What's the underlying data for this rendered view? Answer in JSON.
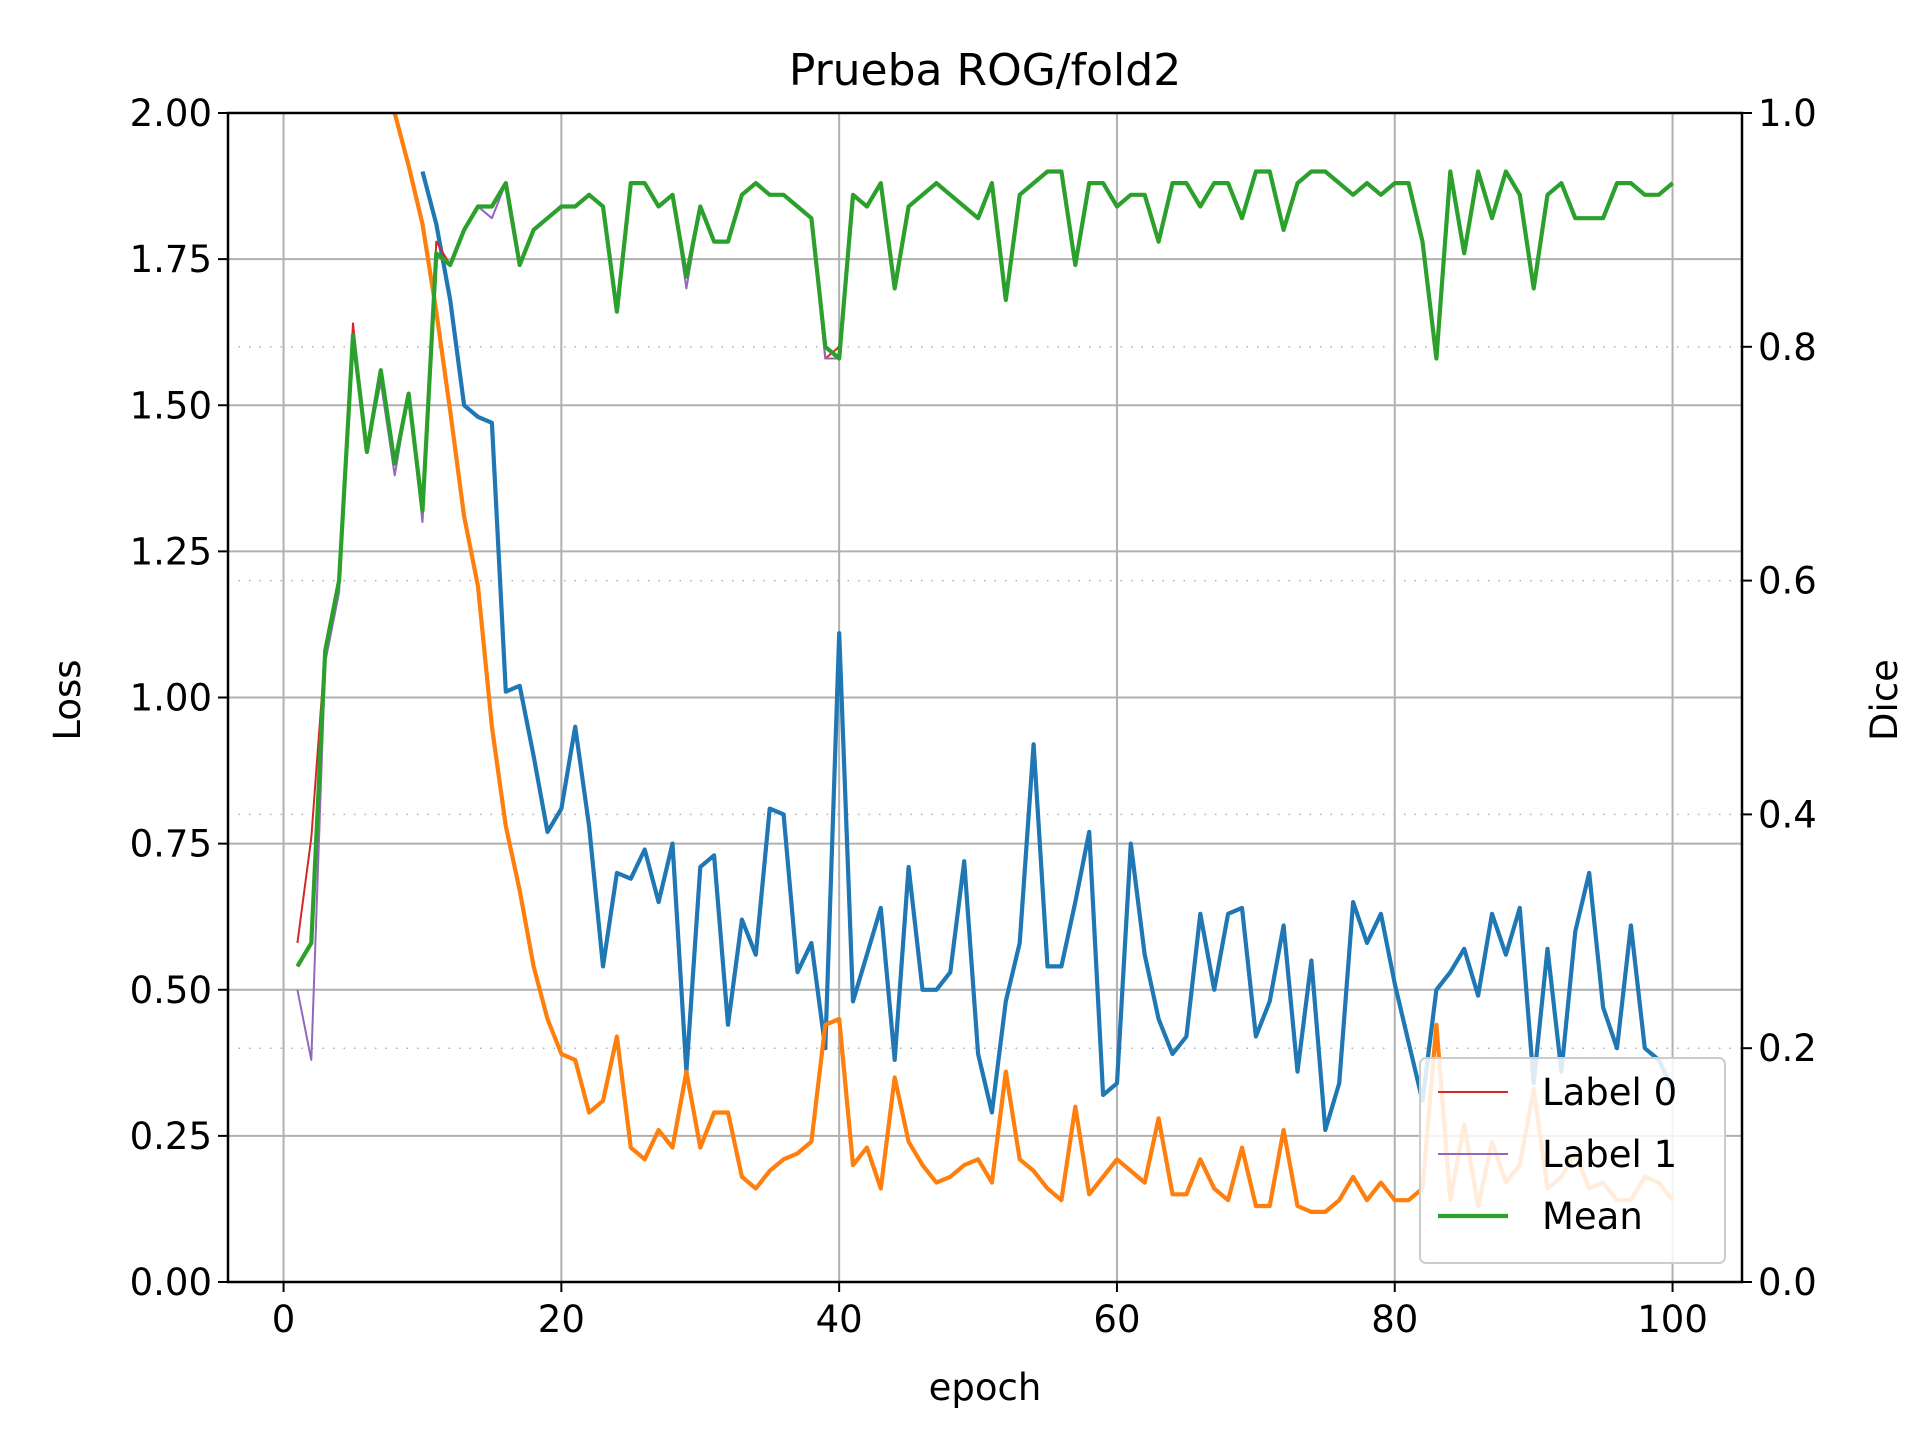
{
  "chart_data": {
    "type": "line",
    "title": "Prueba ROG/fold2",
    "xlabel": "epoch",
    "ylabel_left": "Loss",
    "ylabel_right": "Dice",
    "xlim": [
      -4,
      105
    ],
    "ylim_left": [
      0,
      2
    ],
    "ylim_right": [
      0,
      1
    ],
    "x_ticks": [
      0,
      20,
      40,
      60,
      80,
      100
    ],
    "y_left_ticks": [
      "0.00",
      "0.25",
      "0.50",
      "0.75",
      "1.00",
      "1.25",
      "1.50",
      "1.75",
      "2.00"
    ],
    "y_right_ticks": [
      "0.0",
      "0.2",
      "0.4",
      "0.6",
      "0.8",
      "1.0"
    ],
    "grid": true,
    "legend_position": "bottom-right",
    "colors": {
      "train_loss": "#1f77b4",
      "val_loss": "#ff7f0e",
      "label0": "#d62728",
      "label1": "#9467bd",
      "mean": "#2ca02c",
      "grid": "#b0b0b0"
    },
    "loss_series": [
      {
        "key": "train_loss",
        "axis": "left",
        "x": [
          10,
          11,
          12,
          13,
          14,
          15,
          16,
          17,
          18,
          19,
          20,
          21,
          22,
          23,
          24,
          25,
          26,
          27,
          28,
          29,
          30,
          31,
          32,
          33,
          34,
          35,
          36,
          37,
          38,
          39,
          40,
          41,
          42,
          43,
          44,
          45,
          46,
          47,
          48,
          49,
          50,
          51,
          52,
          53,
          54,
          55,
          56,
          57,
          58,
          59,
          60,
          61,
          62,
          63,
          64,
          65,
          66,
          67,
          68,
          69,
          70,
          71,
          72,
          73,
          74,
          75,
          76,
          77,
          78,
          79,
          80,
          81,
          82,
          83,
          84,
          85,
          86,
          87,
          88,
          89,
          90,
          91,
          92,
          93,
          94,
          95,
          96,
          97,
          98,
          99,
          100
        ],
        "values": [
          1.9,
          1.81,
          1.68,
          1.5,
          1.48,
          1.47,
          1.01,
          1.02,
          0.9,
          0.77,
          0.81,
          0.95,
          0.78,
          0.54,
          0.7,
          0.69,
          0.74,
          0.65,
          0.75,
          0.36,
          0.71,
          0.73,
          0.44,
          0.62,
          0.56,
          0.81,
          0.8,
          0.53,
          0.58,
          0.4,
          1.11,
          0.48,
          0.56,
          0.64,
          0.38,
          0.71,
          0.5,
          0.5,
          0.53,
          0.72,
          0.39,
          0.29,
          0.48,
          0.58,
          0.92,
          0.54,
          0.54,
          0.65,
          0.77,
          0.32,
          0.34,
          0.75,
          0.56,
          0.45,
          0.39,
          0.42,
          0.63,
          0.5,
          0.63,
          0.64,
          0.42,
          0.48,
          0.61,
          0.36,
          0.55,
          0.26,
          0.34,
          0.65,
          0.58,
          0.63,
          0.51,
          0.41,
          0.31,
          0.5,
          0.53,
          0.57,
          0.49,
          0.63,
          0.56,
          0.64,
          0.34,
          0.57,
          0.36,
          0.6,
          0.7,
          0.47,
          0.4,
          0.61,
          0.4,
          0.38,
          0.33
        ]
      },
      {
        "key": "val_loss",
        "axis": "left",
        "x": [
          8,
          9,
          10,
          11,
          12,
          13,
          14,
          15,
          16,
          17,
          18,
          19,
          20,
          21,
          22,
          23,
          24,
          25,
          26,
          27,
          28,
          29,
          30,
          31,
          32,
          33,
          34,
          35,
          36,
          37,
          38,
          39,
          40,
          41,
          42,
          43,
          44,
          45,
          46,
          47,
          48,
          49,
          50,
          51,
          52,
          53,
          54,
          55,
          56,
          57,
          58,
          59,
          60,
          61,
          62,
          63,
          64,
          65,
          66,
          67,
          68,
          69,
          70,
          71,
          72,
          73,
          74,
          75,
          76,
          77,
          78,
          79,
          80,
          81,
          82,
          83,
          84,
          85,
          86,
          87,
          88,
          89,
          90,
          91,
          92,
          93,
          94,
          95,
          96,
          97,
          98,
          99,
          100
        ],
        "values": [
          2.0,
          1.91,
          1.81,
          1.66,
          1.49,
          1.31,
          1.19,
          0.95,
          0.78,
          0.67,
          0.54,
          0.45,
          0.39,
          0.38,
          0.29,
          0.31,
          0.42,
          0.23,
          0.21,
          0.26,
          0.23,
          0.36,
          0.23,
          0.29,
          0.29,
          0.18,
          0.16,
          0.19,
          0.21,
          0.22,
          0.24,
          0.44,
          0.45,
          0.2,
          0.23,
          0.16,
          0.35,
          0.24,
          0.2,
          0.17,
          0.18,
          0.2,
          0.21,
          0.17,
          0.36,
          0.21,
          0.19,
          0.16,
          0.14,
          0.3,
          0.15,
          0.18,
          0.21,
          0.19,
          0.17,
          0.28,
          0.15,
          0.15,
          0.21,
          0.16,
          0.14,
          0.23,
          0.13,
          0.13,
          0.26,
          0.13,
          0.12,
          0.12,
          0.14,
          0.18,
          0.14,
          0.17,
          0.14,
          0.14,
          0.16,
          0.44,
          0.14,
          0.27,
          0.13,
          0.24,
          0.17,
          0.2,
          0.33,
          0.16,
          0.18,
          0.22,
          0.16,
          0.17,
          0.14,
          0.14,
          0.18,
          0.17,
          0.14
        ]
      }
    ],
    "dice_series": [
      {
        "name": "Label 0",
        "key": "label0",
        "axis": "right",
        "x": [
          1,
          2,
          3,
          4,
          5,
          6,
          7,
          8,
          9,
          10,
          11,
          12,
          13,
          14,
          15,
          16,
          17,
          18,
          19,
          20,
          21,
          22,
          23,
          24,
          25,
          26,
          27,
          28,
          29,
          30,
          31,
          32,
          33,
          34,
          35,
          36,
          37,
          38,
          39,
          40,
          41,
          42,
          43,
          44,
          45,
          46,
          47,
          48,
          49,
          50,
          51,
          52,
          53,
          54,
          55,
          56,
          57,
          58,
          59,
          60,
          61,
          62,
          63,
          64,
          65,
          66,
          67,
          68,
          69,
          70,
          71,
          72,
          73,
          74,
          75,
          76,
          77,
          78,
          79,
          80,
          81,
          82,
          83,
          84,
          85,
          86,
          87,
          88,
          89,
          90,
          91,
          92,
          93,
          94,
          95,
          96,
          97,
          98,
          99,
          100
        ],
        "values": [
          0.29,
          0.38,
          0.54,
          0.6,
          0.82,
          0.71,
          0.78,
          0.7,
          0.76,
          0.67,
          0.89,
          0.87,
          0.9,
          0.92,
          0.92,
          0.94,
          0.87,
          0.9,
          0.91,
          0.92,
          0.92,
          0.93,
          0.92,
          0.83,
          0.94,
          0.94,
          0.92,
          0.93,
          0.86,
          0.92,
          0.89,
          0.89,
          0.93,
          0.94,
          0.93,
          0.93,
          0.92,
          0.91,
          0.79,
          0.8,
          0.93,
          0.92,
          0.94,
          0.85,
          0.92,
          0.93,
          0.94,
          0.93,
          0.92,
          0.91,
          0.94,
          0.84,
          0.93,
          0.94,
          0.95,
          0.95,
          0.87,
          0.94,
          0.94,
          0.92,
          0.93,
          0.93,
          0.89,
          0.94,
          0.94,
          0.92,
          0.94,
          0.94,
          0.91,
          0.95,
          0.95,
          0.9,
          0.94,
          0.95,
          0.95,
          0.94,
          0.93,
          0.94,
          0.93,
          0.94,
          0.94,
          0.89,
          0.79,
          0.95,
          0.88,
          0.95,
          0.91,
          0.95,
          0.93,
          0.85,
          0.93,
          0.94,
          0.91,
          0.91,
          0.91,
          0.94,
          0.94,
          0.93,
          0.93,
          0.94
        ]
      },
      {
        "name": "Label 1",
        "key": "label1",
        "axis": "right",
        "x": [
          1,
          2,
          3,
          4,
          5,
          6,
          7,
          8,
          9,
          10,
          11,
          12,
          13,
          14,
          15,
          16,
          17,
          18,
          19,
          20,
          21,
          22,
          23,
          24,
          25,
          26,
          27,
          28,
          29,
          30,
          31,
          32,
          33,
          34,
          35,
          36,
          37,
          38,
          39,
          40,
          41,
          42,
          43,
          44,
          45,
          46,
          47,
          48,
          49,
          50,
          51,
          52,
          53,
          54,
          55,
          56,
          57,
          58,
          59,
          60,
          61,
          62,
          63,
          64,
          65,
          66,
          67,
          68,
          69,
          70,
          71,
          72,
          73,
          74,
          75,
          76,
          77,
          78,
          79,
          80,
          81,
          82,
          83,
          84,
          85,
          86,
          87,
          88,
          89,
          90,
          91,
          92,
          93,
          94,
          95,
          96,
          97,
          98,
          99,
          100
        ],
        "values": [
          0.25,
          0.19,
          0.53,
          0.59,
          0.81,
          0.71,
          0.77,
          0.69,
          0.76,
          0.65,
          0.88,
          0.87,
          0.9,
          0.92,
          0.91,
          0.94,
          0.87,
          0.9,
          0.91,
          0.92,
          0.92,
          0.93,
          0.92,
          0.83,
          0.94,
          0.94,
          0.92,
          0.93,
          0.85,
          0.92,
          0.89,
          0.89,
          0.93,
          0.94,
          0.93,
          0.93,
          0.92,
          0.91,
          0.79,
          0.79,
          0.93,
          0.92,
          0.94,
          0.85,
          0.92,
          0.93,
          0.94,
          0.93,
          0.92,
          0.91,
          0.94,
          0.84,
          0.93,
          0.94,
          0.95,
          0.95,
          0.87,
          0.94,
          0.94,
          0.92,
          0.93,
          0.93,
          0.89,
          0.94,
          0.94,
          0.92,
          0.94,
          0.94,
          0.91,
          0.95,
          0.95,
          0.9,
          0.94,
          0.95,
          0.95,
          0.94,
          0.93,
          0.94,
          0.93,
          0.94,
          0.94,
          0.89,
          0.79,
          0.95,
          0.88,
          0.95,
          0.91,
          0.95,
          0.93,
          0.85,
          0.93,
          0.94,
          0.91,
          0.91,
          0.91,
          0.94,
          0.94,
          0.93,
          0.93,
          0.94
        ]
      },
      {
        "name": "Mean",
        "key": "mean",
        "axis": "right",
        "x": [
          1,
          2,
          3,
          4,
          5,
          6,
          7,
          8,
          9,
          10,
          11,
          12,
          13,
          14,
          15,
          16,
          17,
          18,
          19,
          20,
          21,
          22,
          23,
          24,
          25,
          26,
          27,
          28,
          29,
          30,
          31,
          32,
          33,
          34,
          35,
          36,
          37,
          38,
          39,
          40,
          41,
          42,
          43,
          44,
          45,
          46,
          47,
          48,
          49,
          50,
          51,
          52,
          53,
          54,
          55,
          56,
          57,
          58,
          59,
          60,
          61,
          62,
          63,
          64,
          65,
          66,
          67,
          68,
          69,
          70,
          71,
          72,
          73,
          74,
          75,
          76,
          77,
          78,
          79,
          80,
          81,
          82,
          83,
          84,
          85,
          86,
          87,
          88,
          89,
          90,
          91,
          92,
          93,
          94,
          95,
          96,
          97,
          98,
          99,
          100
        ],
        "values": [
          0.27,
          0.29,
          0.54,
          0.6,
          0.81,
          0.71,
          0.78,
          0.7,
          0.76,
          0.66,
          0.88,
          0.87,
          0.9,
          0.92,
          0.92,
          0.94,
          0.87,
          0.9,
          0.91,
          0.92,
          0.92,
          0.93,
          0.92,
          0.83,
          0.94,
          0.94,
          0.92,
          0.93,
          0.86,
          0.92,
          0.89,
          0.89,
          0.93,
          0.94,
          0.93,
          0.93,
          0.92,
          0.91,
          0.8,
          0.79,
          0.93,
          0.92,
          0.94,
          0.85,
          0.92,
          0.93,
          0.94,
          0.93,
          0.92,
          0.91,
          0.94,
          0.84,
          0.93,
          0.94,
          0.95,
          0.95,
          0.87,
          0.94,
          0.94,
          0.92,
          0.93,
          0.93,
          0.89,
          0.94,
          0.94,
          0.92,
          0.94,
          0.94,
          0.91,
          0.95,
          0.95,
          0.9,
          0.94,
          0.95,
          0.95,
          0.94,
          0.93,
          0.94,
          0.93,
          0.94,
          0.94,
          0.89,
          0.79,
          0.95,
          0.88,
          0.95,
          0.91,
          0.95,
          0.93,
          0.85,
          0.93,
          0.94,
          0.91,
          0.91,
          0.91,
          0.94,
          0.94,
          0.93,
          0.93,
          0.94
        ]
      }
    ]
  }
}
